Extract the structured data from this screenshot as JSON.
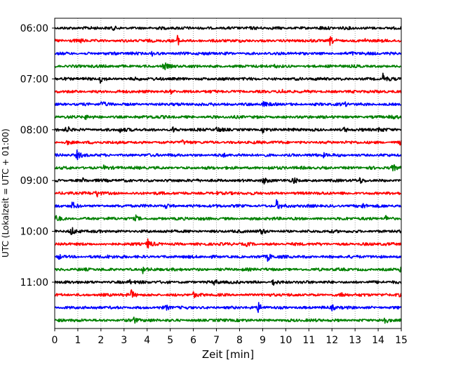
{
  "chart_data": {
    "type": "line",
    "title": "",
    "xlabel": "Zeit  [min]",
    "ylabel": "UTC (Lokalzeit = UTC + 01:00)",
    "xlim": [
      0,
      15
    ],
    "x_ticks": [
      0,
      1,
      2,
      3,
      4,
      5,
      6,
      7,
      8,
      9,
      10,
      11,
      12,
      13,
      14,
      15
    ],
    "y_tick_labels": [
      "06:00",
      "07:00",
      "08:00",
      "09:00",
      "10:00",
      "11:00"
    ],
    "grid": "vertical dotted",
    "trace_colors": [
      "#000000",
      "#ff0000",
      "#0000ff",
      "#008000"
    ],
    "trace_interval_min": 15,
    "traces": [
      {
        "start": "06:00",
        "color": "#000000",
        "events": [
          {
            "t": 2.5,
            "amp": 0.25
          },
          {
            "t": 11.5,
            "amp": 0.15
          }
        ]
      },
      {
        "start": "06:15",
        "color": "#ff0000",
        "events": [
          {
            "t": 1.1,
            "amp": 0.3
          },
          {
            "t": 5.3,
            "amp": 1.0
          },
          {
            "t": 11.9,
            "amp": 0.8
          },
          {
            "t": 13.4,
            "amp": 0.4
          }
        ]
      },
      {
        "start": "06:30",
        "color": "#0000ff",
        "events": [
          {
            "t": 4.2,
            "amp": 0.35
          },
          {
            "t": 12.8,
            "amp": 0.3
          }
        ]
      },
      {
        "start": "06:45",
        "color": "#008000",
        "events": [
          {
            "t": 4.7,
            "amp": 0.8
          },
          {
            "t": 9.5,
            "amp": 0.3
          }
        ]
      },
      {
        "start": "07:00",
        "color": "#000000",
        "events": [
          {
            "t": 1.95,
            "amp": 0.85
          },
          {
            "t": 3.5,
            "amp": 0.3
          },
          {
            "t": 14.2,
            "amp": 0.9
          }
        ]
      },
      {
        "start": "07:15",
        "color": "#ff0000",
        "events": [
          {
            "t": 5.0,
            "amp": 0.35
          },
          {
            "t": 9.8,
            "amp": 0.3
          }
        ]
      },
      {
        "start": "07:30",
        "color": "#0000ff",
        "events": [
          {
            "t": 2.0,
            "amp": 0.5
          },
          {
            "t": 6.8,
            "amp": 0.4
          },
          {
            "t": 9.0,
            "amp": 0.5
          },
          {
            "t": 12.5,
            "amp": 0.35
          }
        ]
      },
      {
        "start": "07:45",
        "color": "#008000",
        "events": [
          {
            "t": 1.3,
            "amp": 0.4
          },
          {
            "t": 4.2,
            "amp": 0.3
          },
          {
            "t": 14.5,
            "amp": 0.5
          }
        ]
      },
      {
        "start": "08:00",
        "color": "#000000",
        "events": [
          {
            "t": 0.5,
            "amp": 0.8
          },
          {
            "t": 2.8,
            "amp": 0.5
          },
          {
            "t": 5.1,
            "amp": 0.5
          },
          {
            "t": 7.0,
            "amp": 0.5
          },
          {
            "t": 9.0,
            "amp": 0.45
          },
          {
            "t": 12.5,
            "amp": 0.5
          },
          {
            "t": 14.0,
            "amp": 0.45
          }
        ]
      },
      {
        "start": "08:15",
        "color": "#ff0000",
        "events": [
          {
            "t": 0.5,
            "amp": 0.45
          },
          {
            "t": 5.5,
            "amp": 0.3
          },
          {
            "t": 14.9,
            "amp": 0.4
          }
        ]
      },
      {
        "start": "08:30",
        "color": "#0000ff",
        "events": [
          {
            "t": 0.95,
            "amp": 0.85
          },
          {
            "t": 7.2,
            "amp": 0.4
          },
          {
            "t": 11.6,
            "amp": 0.4
          }
        ]
      },
      {
        "start": "08:45",
        "color": "#008000",
        "events": [
          {
            "t": 2.1,
            "amp": 0.5
          },
          {
            "t": 9.2,
            "amp": 0.4
          },
          {
            "t": 14.6,
            "amp": 0.7
          }
        ]
      },
      {
        "start": "09:00",
        "color": "#000000",
        "events": [
          {
            "t": 1.2,
            "amp": 0.4
          },
          {
            "t": 9.0,
            "amp": 0.6
          },
          {
            "t": 10.3,
            "amp": 0.8
          },
          {
            "t": 13.2,
            "amp": 0.4
          }
        ]
      },
      {
        "start": "09:15",
        "color": "#ff0000",
        "events": [
          {
            "t": 1.8,
            "amp": 0.85
          },
          {
            "t": 7.0,
            "amp": 0.3
          }
        ]
      },
      {
        "start": "09:30",
        "color": "#0000ff",
        "events": [
          {
            "t": 0.75,
            "amp": 0.7
          },
          {
            "t": 4.8,
            "amp": 0.45
          },
          {
            "t": 9.6,
            "amp": 1.0
          },
          {
            "t": 13.3,
            "amp": 0.55
          }
        ]
      },
      {
        "start": "09:45",
        "color": "#008000",
        "events": [
          {
            "t": 0.05,
            "amp": 0.8
          },
          {
            "t": 3.5,
            "amp": 0.5
          },
          {
            "t": 14.3,
            "amp": 0.6
          }
        ]
      },
      {
        "start": "10:00",
        "color": "#000000",
        "events": [
          {
            "t": 0.7,
            "amp": 0.9
          },
          {
            "t": 8.9,
            "amp": 0.6
          }
        ]
      },
      {
        "start": "10:15",
        "color": "#ff0000",
        "events": [
          {
            "t": 4.0,
            "amp": 1.0
          },
          {
            "t": 8.3,
            "amp": 0.3
          }
        ]
      },
      {
        "start": "10:30",
        "color": "#0000ff",
        "events": [
          {
            "t": 0.15,
            "amp": 0.6
          },
          {
            "t": 2.2,
            "amp": 0.4
          },
          {
            "t": 9.2,
            "amp": 0.9
          }
        ]
      },
      {
        "start": "10:45",
        "color": "#008000",
        "events": [
          {
            "t": 3.8,
            "amp": 0.7
          },
          {
            "t": 14.95,
            "amp": 1.0
          }
        ]
      },
      {
        "start": "11:00",
        "color": "#000000",
        "events": [
          {
            "t": 3.2,
            "amp": 0.5
          },
          {
            "t": 6.9,
            "amp": 0.45
          },
          {
            "t": 9.4,
            "amp": 0.8
          }
        ]
      },
      {
        "start": "11:15",
        "color": "#ff0000",
        "events": [
          {
            "t": 3.3,
            "amp": 0.85
          },
          {
            "t": 6.0,
            "amp": 0.4
          },
          {
            "t": 12.4,
            "amp": 0.5
          },
          {
            "t": 14.8,
            "amp": 0.6
          }
        ]
      },
      {
        "start": "11:30",
        "color": "#0000ff",
        "events": [
          {
            "t": 4.8,
            "amp": 0.4
          },
          {
            "t": 8.8,
            "amp": 0.9
          },
          {
            "t": 12.0,
            "amp": 0.4
          }
        ]
      },
      {
        "start": "11:45",
        "color": "#008000",
        "events": [
          {
            "t": 3.4,
            "amp": 0.7
          },
          {
            "t": 14.2,
            "amp": 0.9
          }
        ]
      }
    ]
  }
}
